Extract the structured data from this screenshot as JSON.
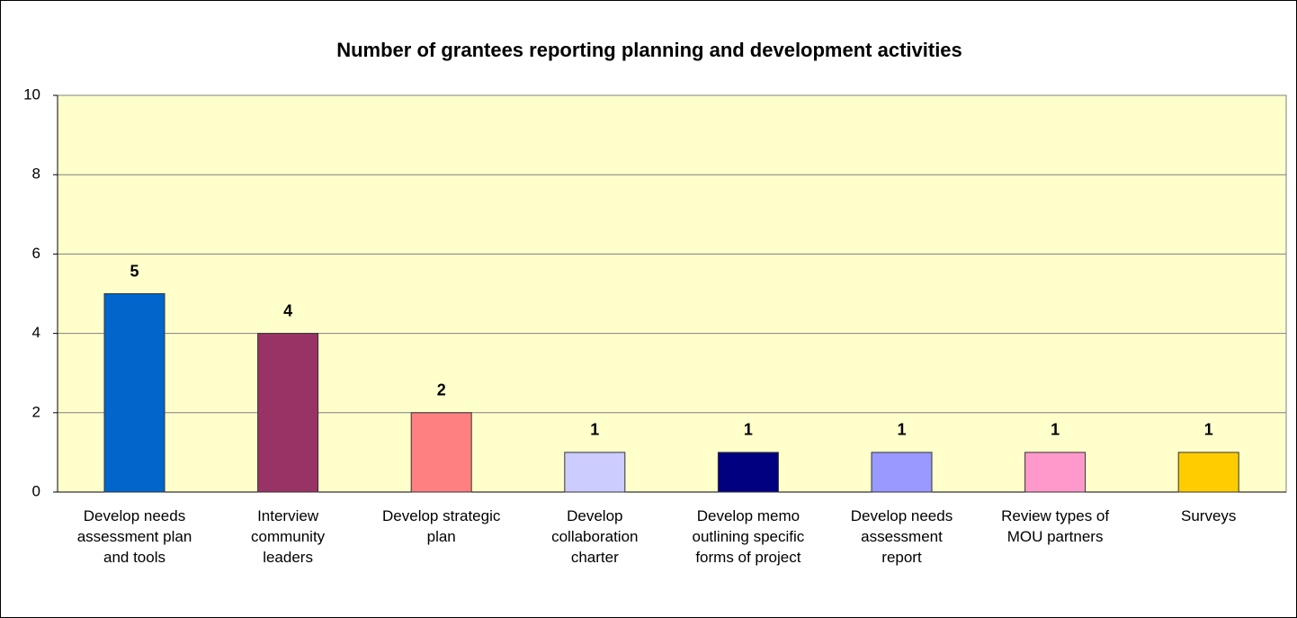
{
  "chart_data": {
    "type": "bar",
    "title": "Number of grantees reporting planning and development activities",
    "categories": [
      "Develop needs assessment plan and tools",
      "Interview community leaders",
      "Develop strategic plan",
      "Develop collaboration charter",
      "Develop memo outlining specific forms of project",
      "Develop needs assessment report",
      "Review types of MOU partners",
      "Surveys"
    ],
    "values": [
      5,
      4,
      2,
      1,
      1,
      1,
      1,
      1
    ],
    "colors": [
      "#0066cc",
      "#993366",
      "#ff8080",
      "#ccccff",
      "#000080",
      "#9999ff",
      "#ff99cc",
      "#ffcc00"
    ],
    "ylim": [
      0,
      10
    ],
    "yticks": [
      0,
      2,
      4,
      6,
      8,
      10
    ],
    "grid": true
  }
}
